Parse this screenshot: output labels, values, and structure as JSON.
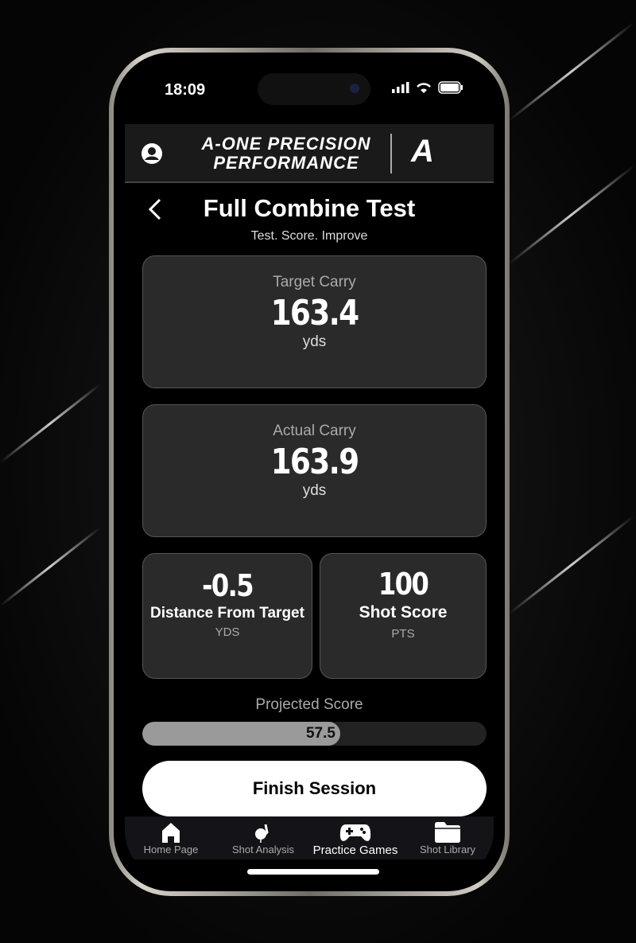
{
  "status_bar": {
    "time": "18:09"
  },
  "header": {
    "brand_line1": "A-ONE PRECISION",
    "brand_line2": "PERFORMANCE",
    "logo_letter": "A"
  },
  "page": {
    "title": "Full Combine Test",
    "subtitle": "Test. Score. Improve"
  },
  "target_carry": {
    "label": "Target Carry",
    "value": "163.4",
    "unit": "yds"
  },
  "actual_carry": {
    "label": "Actual Carry",
    "value": "163.9",
    "unit": "yds"
  },
  "distance_from_target": {
    "value": "-0.5",
    "label": "Distance From Target",
    "unit": "YDS"
  },
  "shot_score": {
    "value": "100",
    "label": "Shot Score",
    "unit": "PTS"
  },
  "projected_score": {
    "label": "Projected Score",
    "value": "57.5",
    "progress_percent": 57.5
  },
  "finish_button": "Finish Session",
  "nav": [
    {
      "label": "Home Page",
      "icon": "home-icon"
    },
    {
      "label": "Shot Analysis",
      "icon": "golf-club-icon"
    },
    {
      "label": "Practice Games",
      "icon": "gamepad-icon",
      "active": true
    },
    {
      "label": "Shot Library",
      "icon": "folder-icon"
    }
  ]
}
